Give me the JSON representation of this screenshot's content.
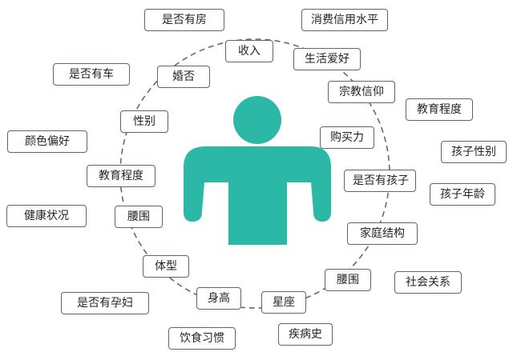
{
  "colors": {
    "figure": "#2bb8a6",
    "ring": "#5f6b73",
    "tag_border": "#5c6670",
    "text": "#1f2326"
  },
  "icons": {
    "center": "person-icon"
  },
  "tags": {
    "house": "是否有房",
    "consumption_credit": "消费信用水平",
    "income": "收入",
    "life_hobbies": "生活爱好",
    "has_car": "是否有车",
    "marital": "婚否",
    "religion": "宗教信仰",
    "education_right": "教育程度",
    "gender": "性别",
    "color_pref": "颜色偏好",
    "purchasing_power": "购买力",
    "child_gender": "孩子性别",
    "education_left": "教育程度",
    "has_child": "是否有孩子",
    "child_age": "孩子年龄",
    "health": "健康状况",
    "waist_left": "腰围",
    "family_structure": "家庭结构",
    "body_type": "体型",
    "waist_right": "腰围",
    "social": "社会关系",
    "pregnant": "是否有孕妇",
    "height": "身高",
    "constellation": "星座",
    "diet": "饮食习惯",
    "medical_history": "疾病史"
  }
}
